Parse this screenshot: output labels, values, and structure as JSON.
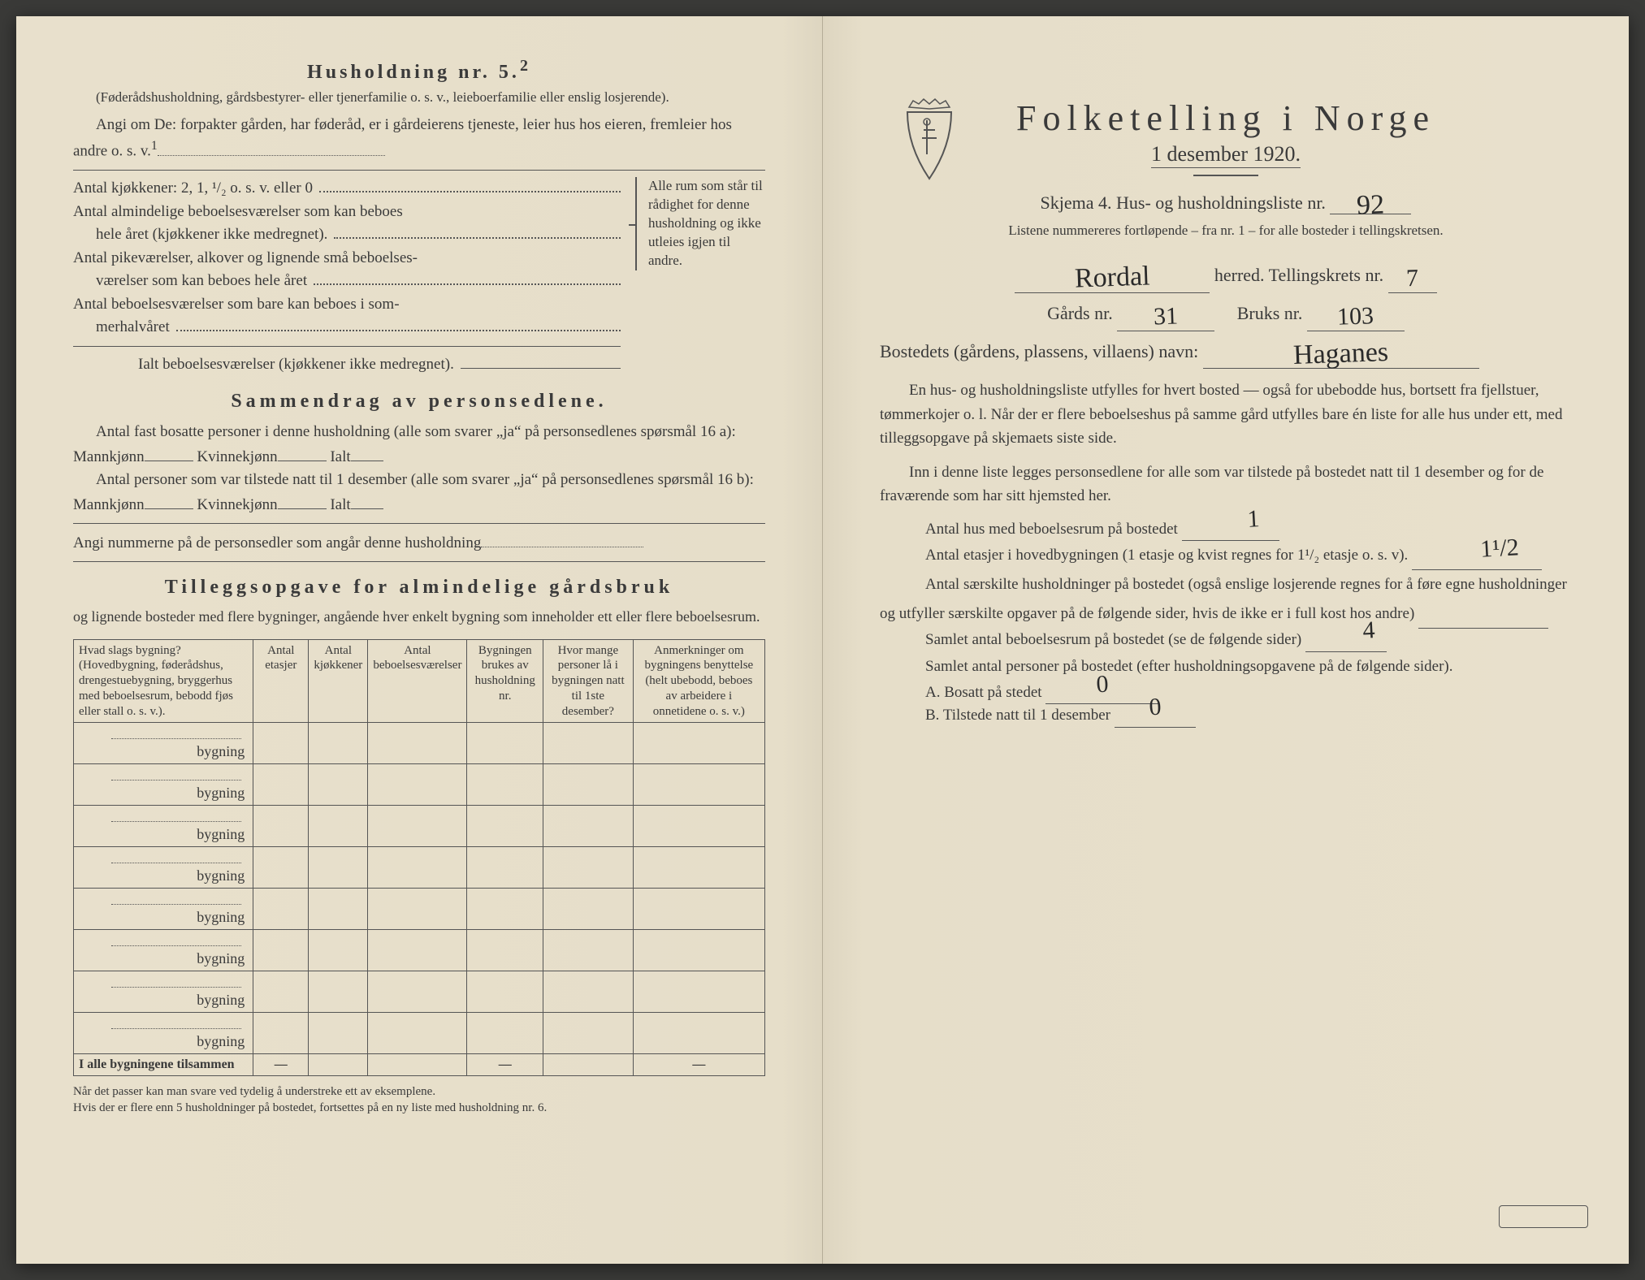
{
  "leftPage": {
    "husholdningHeading": "Husholdning nr. 5.",
    "husholdningSup": "2",
    "paren1": "(Føderådshusholdning, gårdsbestyrer- eller tjenerfamilie o. s. v., leieboerfamilie eller enslig losjerende).",
    "angiLine": "Angi om De:  forpakter gården, har føderåd, er i gårdeierens tjeneste, leier hus hos eieren, fremleier hos andre o. s. v.",
    "angiSup": "1",
    "kjokkener": "Antal kjøkkener: 2, 1, ¹/₂ o. s. v. eller 0",
    "kLine1a": "Antal almindelige beboelsesværelser som kan beboes",
    "kLine1b": "hele året (kjøkkener ikke medregnet).",
    "kLine2a": "Antal pikeværelser, alkover og lignende små beboelses-",
    "kLine2b": "værelser som kan beboes hele året",
    "kLine3a": "Antal beboelsesværelser som bare kan beboes i som-",
    "kLine3b": "merhalvåret",
    "kLineTotal": "Ialt beboelsesværelser   (kjøkkener ikke medregnet).",
    "braceNote": "Alle rum som står til rådighet for denne husholdning og ikke utleies igjen til andre.",
    "sammendragHeading": "Sammendrag av personsedlene.",
    "s1": "Antal fast bosatte personer i denne husholdning (alle som svarer „ja“ på personsedlenes spørsmål 16 a): Mannkjønn",
    "sKvinne": "Kvinnekjønn",
    "sIalt": "Ialt",
    "s2": "Antal personer som var tilstede natt til 1 desember (alle som svarer „ja“ på personsedlenes spørsmål 16 b): Mannkjønn",
    "s3": "Angi nummerne på de personsedler som angår denne husholdning",
    "tilleggHeading": "Tilleggsopgave for almindelige gårdsbruk",
    "tilleggIntro": "og lignende bosteder med flere bygninger, angående hver enkelt bygning som inneholder ett eller flere beboelsesrum.",
    "table": {
      "columns": [
        "Hvad slags bygning?\n(Hovedbygning, føderådshus, drengestuebygning, bryggerhus med beboelsesrum, bebodd fjøs eller stall o. s. v.).",
        "Antal etasjer",
        "Antal kjøkkener",
        "Antal beboelsesværelser",
        "Bygningen brukes av husholdning nr.",
        "Hvor mange personer lå i bygningen natt til 1ste desember?",
        "Anmerkninger om bygningens benyttelse (helt ubebodd, beboes av arbeidere i onnetidene o. s. v.)"
      ],
      "rowLabel": "bygning",
      "rowCount": 8,
      "totalLabel": "I alle bygningene tilsammen",
      "dash": "—"
    },
    "footnote": "Når det passer kan man svare ved tydelig å understreke ett av eksemplene.\nHvis der er flere enn 5 husholdninger på bostedet, fortsettes på en ny liste med husholdning nr. 6."
  },
  "rightPage": {
    "titleMain": "Folketelling i Norge",
    "titleSub": "1 desember 1920.",
    "skjemaLine": "Skjema 4.   Hus- og husholdningsliste nr.",
    "skjemaNr": "92",
    "subNote": "Listene nummereres fortløpende – fra nr. 1 – for alle bosteder i tellingskretsen.",
    "herredLabel": "herred.   Tellingskrets nr.",
    "herredValue": "Rordal",
    "kretsNr": "7",
    "gaardsLabel": "Gårds nr.",
    "gaardsNr": "31",
    "bruksLabel": "Bruks nr.",
    "bruksNr": "103",
    "bostedLabel": "Bostedets (gårdens, plassens, villaens) navn:",
    "bostedValue": "Haganes",
    "p1": "En hus- og husholdningsliste utfylles for hvert bosted — også for ubebodde hus, bortsett fra fjellstuer, tømmerkojer o. l.  Når der er flere beboelseshus på samme gård utfylles bare én liste for alle hus under ett, med tilleggsopgave på skjemaets siste side.",
    "p2": "Inn i denne liste legges personsedlene for alle som var tilstede på bostedet natt til 1 desember og for de fraværende som har sitt hjemsted her.",
    "q1": "Antal hus med beboelsesrum på bostedet",
    "q1v": "1",
    "q2a": "Antal etasjer i hovedbygningen (1 etasje og kvist regnes for 1¹/₂ etasje o. s. v).",
    "q2v": "1¹/2",
    "q3": "Antal særskilte husholdninger på bostedet (også enslige losjerende regnes for å føre egne husholdninger og utfyller særskilte opgaver på de følgende sider, hvis de ikke er i full kost hos andre)",
    "q4": "Samlet antal beboelsesrum på bostedet (se de følgende sider)",
    "q4v": "4",
    "q5": "Samlet antal personer på bostedet (efter husholdningsopgavene på de følgende sider).",
    "qA": "A.   Bosatt på stedet",
    "qAv": "0",
    "qB": "B.   Tilstede natt til 1 desember",
    "qBv": "0"
  },
  "colors": {
    "paper": "#e8e0cc",
    "ink": "#3a3a3a",
    "handwriting": "#2a2a2a"
  }
}
